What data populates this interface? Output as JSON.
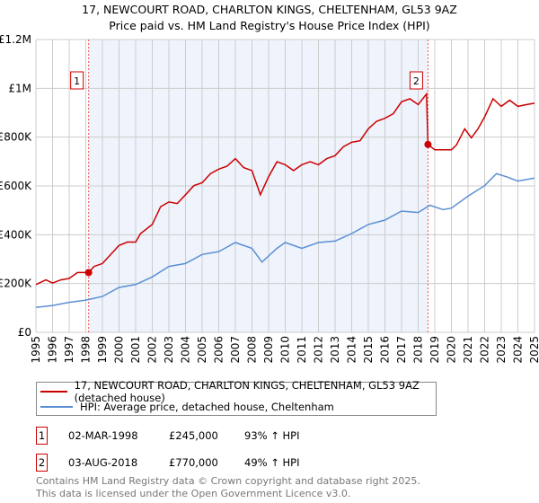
{
  "title": "17, NEWCOURT ROAD, CHARLTON KINGS, CHELTENHAM, GL53 9AZ",
  "subtitle": "Price paid vs. HM Land Registry's House Price Index (HPI)",
  "chart_data": {
    "type": "line",
    "xlim": [
      1995,
      2025
    ],
    "ylim": [
      0,
      1200000
    ],
    "x_ticks": [
      "1995",
      "1996",
      "1997",
      "1998",
      "1999",
      "2000",
      "2001",
      "2002",
      "2003",
      "2004",
      "2005",
      "2006",
      "2007",
      "2008",
      "2009",
      "2010",
      "2011",
      "2012",
      "2013",
      "2014",
      "2015",
      "2016",
      "2017",
      "2018",
      "2019",
      "2020",
      "2021",
      "2022",
      "2023",
      "2024",
      "2025"
    ],
    "y_ticks": [
      {
        "v": 0,
        "label": "£0"
      },
      {
        "v": 200000,
        "label": "£200K"
      },
      {
        "v": 400000,
        "label": "£400K"
      },
      {
        "v": 600000,
        "label": "£600K"
      },
      {
        "v": 800000,
        "label": "£800K"
      },
      {
        "v": 1000000,
        "label": "£1M"
      },
      {
        "v": 1200000,
        "label": "£1.2M"
      }
    ],
    "grid": true,
    "shaded_range": [
      1998.17,
      2018.59
    ],
    "series": [
      {
        "name": "17, NEWCOURT ROAD, CHARLTON KINGS, CHELTENHAM, GL53 9AZ (detached house)",
        "color": "#cc0000",
        "x": [
          1995,
          1995.6,
          1996,
          1996.5,
          1997,
          1997.5,
          1998.17,
          1998.5,
          1999,
          1999.5,
          2000,
          2000.5,
          2001,
          2001.3,
          2002,
          2002.5,
          2003,
          2003.5,
          2004,
          2004.5,
          2005,
          2005.5,
          2006,
          2006.5,
          2007,
          2007.5,
          2008,
          2008.5,
          2009,
          2009.5,
          2010,
          2010.5,
          2011,
          2011.5,
          2012,
          2012.5,
          2013,
          2013.5,
          2014,
          2014.5,
          2015,
          2015.5,
          2016,
          2016.5,
          2017,
          2017.5,
          2018,
          2018.5,
          2018.59,
          2019,
          2019.5,
          2020,
          2020.3,
          2020.8,
          2021.2,
          2021.6,
          2022,
          2022.5,
          2023,
          2023.5,
          2024,
          2024.5,
          2025
        ],
        "y": [
          196000,
          215000,
          202000,
          215000,
          221000,
          245000,
          245000,
          270000,
          282000,
          319000,
          356000,
          370000,
          370000,
          405000,
          442000,
          515000,
          534000,
          528000,
          564000,
          601000,
          613000,
          650000,
          669000,
          681000,
          712000,
          675000,
          663000,
          564000,
          638000,
          699000,
          687000,
          663000,
          687000,
          699000,
          687000,
          712000,
          724000,
          761000,
          779000,
          785000,
          834000,
          865000,
          877000,
          896000,
          945000,
          957000,
          933000,
          977000,
          770000,
          748000,
          748000,
          748000,
          767000,
          834000,
          797000,
          834000,
          883000,
          957000,
          926000,
          951000,
          926000,
          933000,
          939000
        ]
      },
      {
        "name": "HPI: Average price, detached house, Cheltenham",
        "color": "#5b8fd4",
        "x": [
          1995,
          1996,
          1997,
          1998,
          1999,
          2000,
          2001,
          2002,
          2003,
          2004,
          2005,
          2006,
          2007,
          2008,
          2008.6,
          2009.5,
          2010,
          2011,
          2012,
          2013,
          2014,
          2015,
          2016,
          2017,
          2018,
          2018.7,
          2019.5,
          2020,
          2021,
          2022,
          2022.7,
          2023.3,
          2024,
          2025
        ],
        "y": [
          102000,
          110000,
          123000,
          132000,
          147000,
          184000,
          196000,
          227000,
          270000,
          282000,
          319000,
          331000,
          368000,
          344000,
          288000,
          344000,
          368000,
          344000,
          368000,
          374000,
          405000,
          442000,
          460000,
          497000,
          491000,
          521000,
          503000,
          509000,
          558000,
          601000,
          650000,
          638000,
          620000,
          632000
        ]
      }
    ],
    "sales": [
      {
        "label": "1",
        "x": 1998.17,
        "y": 245000
      },
      {
        "label": "2",
        "x": 2018.59,
        "y": 770000
      }
    ]
  },
  "legend": {
    "property": "17, NEWCOURT ROAD, CHARLTON KINGS, CHELTENHAM, GL53 9AZ (detached house)",
    "hpi": "HPI: Average price, detached house, Cheltenham"
  },
  "transactions": [
    {
      "num": "1",
      "date": "02-MAR-1998",
      "price": "£245,000",
      "hpi": "93% ↑ HPI"
    },
    {
      "num": "2",
      "date": "03-AUG-2018",
      "price": "£770,000",
      "hpi": "49% ↑ HPI"
    }
  ],
  "footer": [
    "Contains HM Land Registry data © Crown copyright and database right 2025.",
    "This data is licensed under the Open Government Licence v3.0."
  ]
}
